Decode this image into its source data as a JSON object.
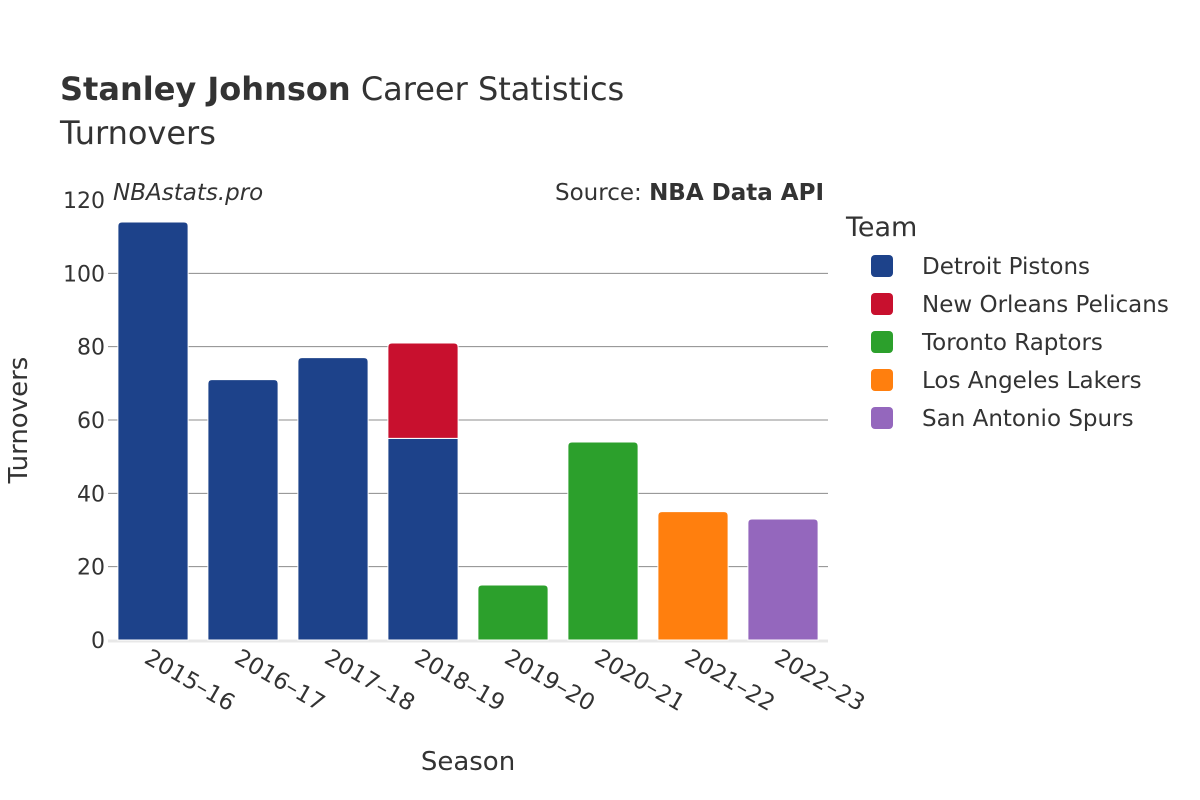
{
  "chart_data": {
    "type": "bar",
    "stacked": true,
    "title_name": "Stanley Johnson",
    "title_rest": " Career Statistics",
    "subtitle": "Turnovers",
    "watermark": "NBAstats.pro",
    "source_prefix": "Source: ",
    "source_name": "NBA Data API",
    "xlabel": "Season",
    "ylabel": "Turnovers",
    "ylim": [
      0,
      120
    ],
    "yticks": [
      0,
      20,
      40,
      60,
      80,
      100,
      120
    ],
    "categories": [
      "2015–16",
      "2016–17",
      "2017–18",
      "2018–19",
      "2019–20",
      "2020–21",
      "2021–22",
      "2022–23"
    ],
    "legend_title": "Team",
    "legend_position": "right",
    "series": [
      {
        "name": "Detroit Pistons",
        "color": "#1d428a",
        "values": [
          114,
          71,
          77,
          55,
          0,
          0,
          0,
          0
        ]
      },
      {
        "name": "New Orleans Pelicans",
        "color": "#c8102e",
        "values": [
          0,
          0,
          0,
          26,
          0,
          0,
          0,
          0
        ]
      },
      {
        "name": "Toronto Raptors",
        "color": "#2ca02c",
        "values": [
          0,
          0,
          0,
          0,
          15,
          54,
          0,
          0
        ]
      },
      {
        "name": "Los Angeles Lakers",
        "color": "#ff7f0e",
        "values": [
          0,
          0,
          0,
          0,
          0,
          0,
          35,
          0
        ]
      },
      {
        "name": "San Antonio Spurs",
        "color": "#9467bd",
        "values": [
          0,
          0,
          0,
          0,
          0,
          0,
          0,
          33
        ]
      }
    ]
  }
}
